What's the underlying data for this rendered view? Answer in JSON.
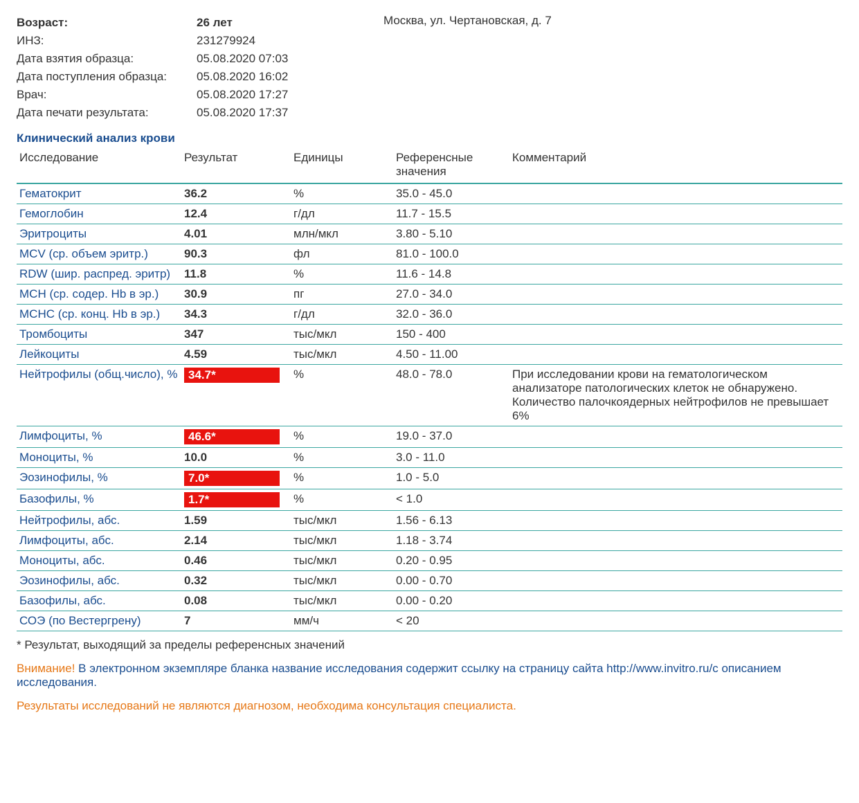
{
  "colors": {
    "link_blue": "#1a4d8f",
    "teal_border": "#3aa6a0",
    "flag_red": "#e8130e",
    "orange": "#e67817",
    "text": "#333333",
    "background": "#ffffff"
  },
  "address": "Москва, ул. Чертановская, д. 7",
  "meta": {
    "age_label": "Возраст:",
    "age_value": "26 лет",
    "inz_label": "ИНЗ:",
    "inz_value": "231279924",
    "sample_date_label": "Дата взятия образца:",
    "sample_date_value": "05.08.2020 07:03",
    "receive_date_label": "Дата поступления образца:",
    "receive_date_value": "05.08.2020 16:02",
    "doctor_label": "Врач:",
    "doctor_value": "05.08.2020 17:27",
    "print_date_label": "Дата печати результата:",
    "print_date_value": "05.08.2020 17:37"
  },
  "section_title": "Клинический анализ крови",
  "columns": {
    "name": "Исследование",
    "result": "Результат",
    "unit": "Единицы",
    "ref": "Референсные значения",
    "comment": "Комментарий"
  },
  "rows": [
    {
      "name": "Гематокрит",
      "result": "36.2",
      "unit": "%",
      "ref": "35.0 - 45.0",
      "flag": false,
      "comment": ""
    },
    {
      "name": "Гемоглобин",
      "result": "12.4",
      "unit": "г/дл",
      "ref": "11.7 - 15.5",
      "flag": false,
      "comment": ""
    },
    {
      "name": "Эритроциты",
      "result": "4.01",
      "unit": "млн/мкл",
      "ref": "3.80 - 5.10",
      "flag": false,
      "comment": ""
    },
    {
      "name": "MCV (ср. объем эритр.)",
      "result": "90.3",
      "unit": "фл",
      "ref": "81.0 - 100.0",
      "flag": false,
      "comment": ""
    },
    {
      "name": "RDW (шир. распред. эритр)",
      "result": "11.8",
      "unit": "%",
      "ref": "11.6 - 14.8",
      "flag": false,
      "comment": ""
    },
    {
      "name": "MCH (ср. содер. Hb в эр.)",
      "result": "30.9",
      "unit": "пг",
      "ref": "27.0 - 34.0",
      "flag": false,
      "comment": ""
    },
    {
      "name": "MCHC (ср. конц. Hb в эр.)",
      "result": "34.3",
      "unit": "г/дл",
      "ref": "32.0 - 36.0",
      "flag": false,
      "comment": ""
    },
    {
      "name": "Тромбоциты",
      "result": "347",
      "unit": "тыс/мкл",
      "ref": "150 - 400",
      "flag": false,
      "comment": ""
    },
    {
      "name": "Лейкоциты",
      "result": "4.59",
      "unit": "тыс/мкл",
      "ref": "4.50 - 11.00",
      "flag": false,
      "comment": ""
    },
    {
      "name": "Нейтрофилы (общ.число), %",
      "result": "34.7*",
      "unit": "%",
      "ref": "48.0 - 78.0",
      "flag": true,
      "comment": "При исследовании крови на гематологическом анализаторе патологических клеток не обнаружено. Количество палочкоядерных нейтрофилов не превышает 6%"
    },
    {
      "name": "Лимфоциты, %",
      "result": "46.6*",
      "unit": "%",
      "ref": "19.0 - 37.0",
      "flag": true,
      "comment": ""
    },
    {
      "name": "Моноциты, %",
      "result": "10.0",
      "unit": "%",
      "ref": "3.0 - 11.0",
      "flag": false,
      "comment": ""
    },
    {
      "name": "Эозинофилы, %",
      "result": "7.0*",
      "unit": "%",
      "ref": "1.0 - 5.0",
      "flag": true,
      "comment": ""
    },
    {
      "name": "Базофилы, %",
      "result": "1.7*",
      "unit": "%",
      "ref": "< 1.0",
      "flag": true,
      "comment": ""
    },
    {
      "name": "Нейтрофилы, абс.",
      "result": "1.59",
      "unit": "тыс/мкл",
      "ref": "1.56 - 6.13",
      "flag": false,
      "comment": ""
    },
    {
      "name": "Лимфоциты, абс.",
      "result": "2.14",
      "unit": "тыс/мкл",
      "ref": "1.18 - 3.74",
      "flag": false,
      "comment": ""
    },
    {
      "name": "Моноциты, абс.",
      "result": "0.46",
      "unit": "тыс/мкл",
      "ref": "0.20 - 0.95",
      "flag": false,
      "comment": ""
    },
    {
      "name": "Эозинофилы, абс.",
      "result": "0.32",
      "unit": "тыс/мкл",
      "ref": "0.00 - 0.70",
      "flag": false,
      "comment": ""
    },
    {
      "name": "Базофилы, абс.",
      "result": "0.08",
      "unit": "тыс/мкл",
      "ref": "0.00 - 0.20",
      "flag": false,
      "comment": ""
    },
    {
      "name": "СОЭ (по Вестергрену)",
      "result": "7",
      "unit": "мм/ч",
      "ref": "< 20",
      "flag": false,
      "comment": ""
    }
  ],
  "footnote": "* Результат, выходящий за пределы референсных значений",
  "notice_attn": "Внимание!",
  "notice_body": " В электронном экземпляре бланка название исследования содержит ссылку на страницу сайта http://www.invitro.ru/с описанием исследования.",
  "disclaimer": "Результаты исследований не являются диагнозом, необходима консультация специалиста."
}
